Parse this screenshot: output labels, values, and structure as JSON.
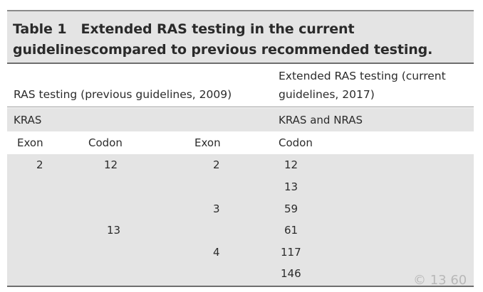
{
  "title": {
    "number": "Table 1",
    "line1": "Extended RAS testing in the current",
    "line2": "guidelinescompared to previous recommended testing."
  },
  "headers": {
    "previous": "RAS testing (previous guidelines, 2009)",
    "current_line1": "Extended RAS testing (current",
    "current_line2": "guidelines, 2017)"
  },
  "gene_row": {
    "previous": "KRAS",
    "current": "KRAS and NRAS"
  },
  "subheaders": [
    "Exon",
    "Codon",
    "Exon",
    "Codon"
  ],
  "rows": [
    {
      "prev_exon": "2",
      "prev_codon": "12",
      "cur_exon": "2",
      "cur_codon": "12"
    },
    {
      "prev_exon": "",
      "prev_codon": "",
      "cur_exon": "",
      "cur_codon": "13"
    },
    {
      "prev_exon": "",
      "prev_codon": "",
      "cur_exon": "3",
      "cur_codon": "59"
    },
    {
      "prev_exon": "",
      "prev_codon": "13",
      "cur_exon": "",
      "cur_codon": "61"
    },
    {
      "prev_exon": "",
      "prev_codon": "",
      "cur_exon": "4",
      "cur_codon": "117"
    },
    {
      "prev_exon": "",
      "prev_codon": "",
      "cur_exon": "",
      "cur_codon": "146"
    }
  ],
  "watermark": "© 13 60"
}
